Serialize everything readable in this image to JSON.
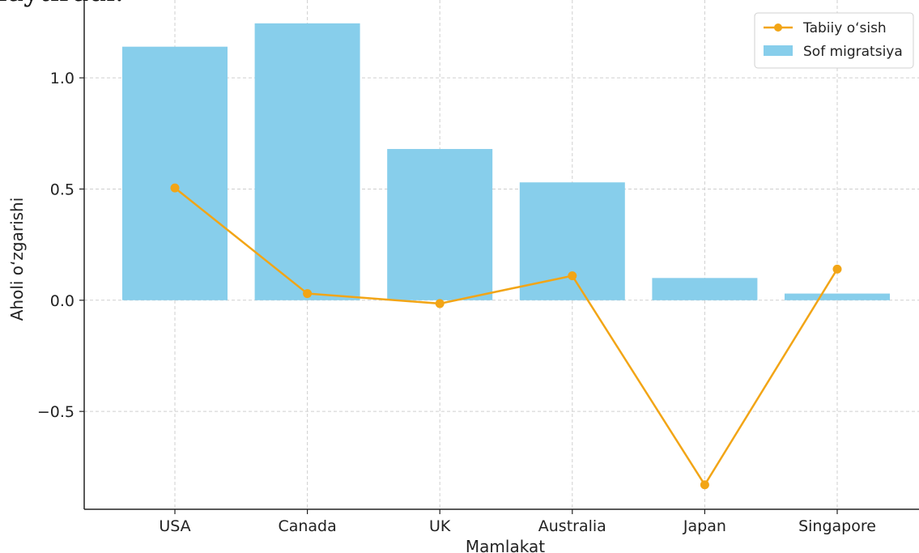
{
  "cropped_caption": "laytiradi.",
  "chart_data": {
    "type": "bar",
    "categories": [
      "USA",
      "Canada",
      "UK",
      "Australia",
      "Japan",
      "Singapore"
    ],
    "series": [
      {
        "name": "Sof migratsiya",
        "kind": "bar",
        "color": "#87CEEB",
        "values": [
          1.14,
          1.245,
          0.68,
          0.53,
          0.1,
          0.03
        ]
      },
      {
        "name": "Tabiiy o‘sish",
        "kind": "line",
        "color": "#F2A516",
        "values": [
          0.505,
          0.03,
          -0.015,
          0.11,
          -0.83,
          0.14
        ]
      }
    ],
    "xlabel": "Mamlakat",
    "ylabel": "Aholi o‘zgarishi",
    "ylim": [
      -0.94,
      1.35
    ],
    "yticks": [
      -0.5,
      0.0,
      0.5,
      1.0
    ],
    "ytick_labels": [
      "−0.5",
      "0.0",
      "0.5",
      "1.0"
    ],
    "grid": true,
    "legend_position": "top-right"
  }
}
